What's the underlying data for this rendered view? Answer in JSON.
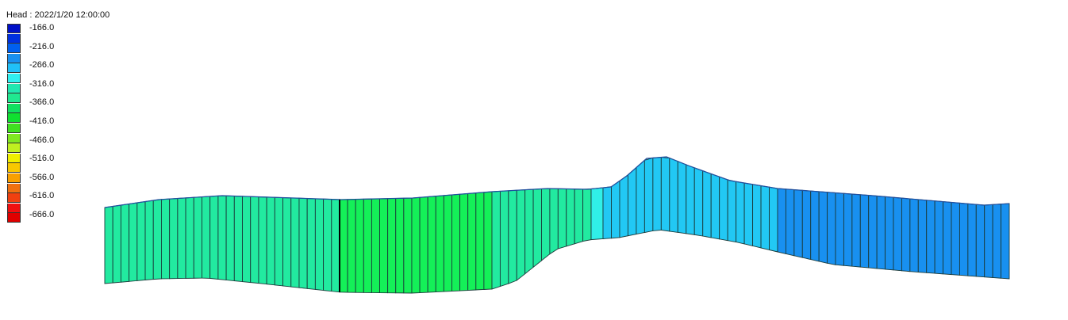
{
  "chart_data": {
    "type": "heatmap",
    "title": "Head : 2022/1/20 12:00:00",
    "legend": {
      "labels": [
        "-166.0",
        "-216.0",
        "-266.0",
        "-316.0",
        "-366.0",
        "-416.0",
        "-466.0",
        "-516.0",
        "-566.0",
        "-616.0",
        "-666.0"
      ],
      "colors": [
        "#0010c8",
        "#0030e0",
        "#0060f0",
        "#1890f0",
        "#20c0f8",
        "#30f0f0",
        "#20e8b0",
        "#20e890",
        "#10e060",
        "#10e030",
        "#40e020",
        "#80e820",
        "#c0f020",
        "#f0f000",
        "#f8c800",
        "#f8a000",
        "#f07010",
        "#f04010",
        "#f01010",
        "#e00000"
      ],
      "position": "top-left"
    },
    "zone_colors": [
      "#22eaa0",
      "#14f058",
      "#22eaa0",
      "#30f0e8",
      "#22c8f4",
      "#1890f0"
    ]
  }
}
